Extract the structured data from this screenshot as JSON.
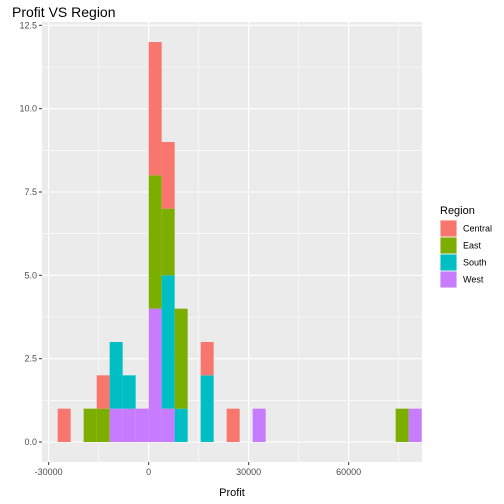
{
  "chart_data": {
    "type": "bar",
    "subtype": "stacked-histogram",
    "title": "Profit VS Region",
    "xlabel": "Profit",
    "ylabel": "",
    "xlim": [
      -32000,
      82000
    ],
    "ylim": [
      -0.6,
      12.6
    ],
    "xticks": [
      -30000,
      0,
      30000,
      60000
    ],
    "xtick_labels": [
      "-30000",
      "0",
      "30000",
      "60000"
    ],
    "yticks": [
      0,
      2.5,
      5,
      7.5,
      10,
      12.5
    ],
    "ytick_labels": [
      "0.0",
      "2.5",
      "5.0",
      "7.5",
      "10.0",
      "12.5"
    ],
    "grid": true,
    "legend": {
      "title": "Region",
      "placement": "right"
    },
    "bin_width": 3900,
    "bins": [
      [
        -27300,
        -23400
      ],
      [
        -19500,
        -15600
      ],
      [
        -15600,
        -11700
      ],
      [
        -11700,
        -7800
      ],
      [
        -7800,
        -3900
      ],
      [
        -3900,
        0
      ],
      [
        0,
        3900
      ],
      [
        3900,
        7800
      ],
      [
        7800,
        11700
      ],
      [
        15600,
        19500
      ],
      [
        23400,
        27300
      ],
      [
        31200,
        35100
      ],
      [
        74100,
        78000
      ],
      [
        78000,
        81900
      ]
    ],
    "series": [
      {
        "name": "Central",
        "color": "#F8766D",
        "values": [
          1,
          0,
          1,
          0,
          0,
          0,
          4,
          2,
          0,
          1,
          1,
          0,
          0,
          0
        ]
      },
      {
        "name": "East",
        "color": "#7CAE00",
        "values": [
          0,
          1,
          1,
          0,
          0,
          0,
          4,
          2,
          3,
          0,
          0,
          0,
          1,
          0
        ]
      },
      {
        "name": "South",
        "color": "#00BFC4",
        "values": [
          0,
          0,
          0,
          2,
          1,
          0,
          0,
          4,
          1,
          2,
          0,
          0,
          0,
          0
        ]
      },
      {
        "name": "West",
        "color": "#C77CFF",
        "values": [
          0,
          0,
          0,
          1,
          1,
          1,
          4,
          1,
          0,
          0,
          0,
          1,
          0,
          1
        ]
      }
    ]
  }
}
